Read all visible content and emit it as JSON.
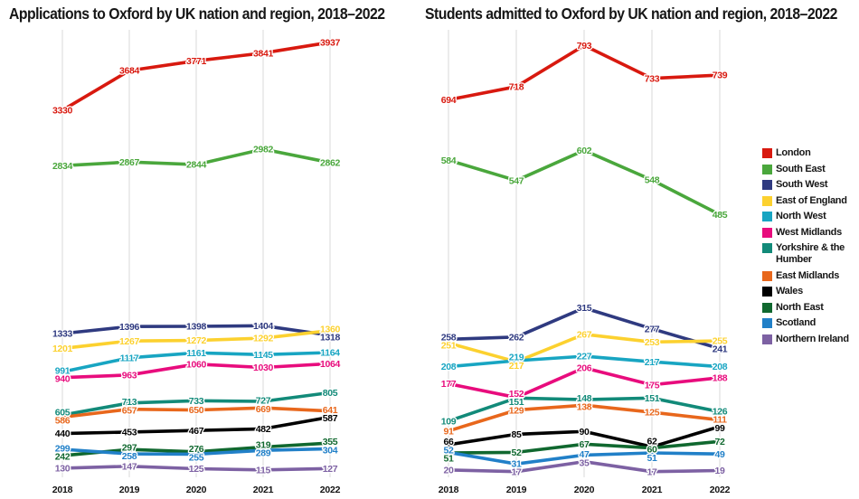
{
  "chart_data": [
    {
      "type": "line",
      "title": "Applications to Oxford by UK nation and region, 2018–2022",
      "x": [
        "2018",
        "2019",
        "2020",
        "2021",
        "2022"
      ],
      "xlabel": "",
      "ylabel": "",
      "ylim": [
        0,
        4000
      ],
      "grid": "vertical-gridlines-only",
      "legend_position": "right-shared",
      "point_labels": "every-point",
      "series": [
        {
          "name": "London",
          "color": "#d8190f",
          "values": [
            3330,
            3684,
            3771,
            3841,
            3937
          ]
        },
        {
          "name": "South East",
          "color": "#4aa73c",
          "values": [
            2834,
            2867,
            2844,
            2982,
            2862
          ]
        },
        {
          "name": "South West",
          "color": "#2f3a80",
          "values": [
            1333,
            1396,
            1398,
            1404,
            1318
          ]
        },
        {
          "name": "East of England",
          "color": "#fcd12f",
          "values": [
            1201,
            1267,
            1272,
            1292,
            1360
          ]
        },
        {
          "name": "North West",
          "color": "#18a5c2",
          "values": [
            991,
            1117,
            1161,
            1145,
            1164
          ]
        },
        {
          "name": "West Midlands",
          "color": "#e80c7d",
          "values": [
            940,
            963,
            1060,
            1030,
            1064
          ]
        },
        {
          "name": "Yorkshire & the Humber",
          "color": "#128a79",
          "values": [
            605,
            713,
            733,
            727,
            805
          ]
        },
        {
          "name": "East Midlands",
          "color": "#e8671c",
          "values": [
            586,
            657,
            650,
            669,
            641
          ]
        },
        {
          "name": "Wales",
          "color": "#000000",
          "values": [
            440,
            453,
            467,
            482,
            587
          ]
        },
        {
          "name": "North East",
          "color": "#10682f",
          "values": [
            242,
            297,
            276,
            319,
            355
          ]
        },
        {
          "name": "Scotland",
          "color": "#2180c8",
          "values": [
            299,
            258,
            255,
            289,
            304
          ]
        },
        {
          "name": "Northern Ireland",
          "color": "#7d61a3",
          "values": [
            130,
            147,
            125,
            115,
            127
          ]
        }
      ]
    },
    {
      "type": "line",
      "title": "Students admitted to Oxford by UK nation and region, 2018–2022",
      "x": [
        "2018",
        "2019",
        "2020",
        "2021",
        "2022"
      ],
      "xlabel": "",
      "ylabel": "",
      "ylim": [
        0,
        800
      ],
      "grid": "vertical-gridlines-only",
      "legend_position": "right-shared",
      "point_labels": "every-point",
      "series": [
        {
          "name": "London",
          "color": "#d8190f",
          "values": [
            694,
            718,
            793,
            733,
            739
          ]
        },
        {
          "name": "South East",
          "color": "#4aa73c",
          "values": [
            584,
            547,
            602,
            548,
            485
          ]
        },
        {
          "name": "South West",
          "color": "#2f3a80",
          "values": [
            258,
            262,
            315,
            277,
            241
          ]
        },
        {
          "name": "East of England",
          "color": "#fcd12f",
          "values": [
            251,
            217,
            267,
            253,
            255
          ]
        },
        {
          "name": "North West",
          "color": "#18a5c2",
          "values": [
            208,
            219,
            227,
            217,
            208
          ]
        },
        {
          "name": "West Midlands",
          "color": "#e80c7d",
          "values": [
            177,
            152,
            206,
            175,
            188
          ]
        },
        {
          "name": "Yorkshire & the Humber",
          "color": "#128a79",
          "values": [
            109,
            151,
            148,
            151,
            126
          ]
        },
        {
          "name": "East Midlands",
          "color": "#e8671c",
          "values": [
            91,
            129,
            138,
            125,
            111
          ]
        },
        {
          "name": "Wales",
          "color": "#000000",
          "values": [
            66,
            85,
            90,
            62,
            99
          ]
        },
        {
          "name": "North East",
          "color": "#10682f",
          "values": [
            51,
            52,
            67,
            60,
            72
          ]
        },
        {
          "name": "Scotland",
          "color": "#2180c8",
          "values": [
            52,
            31,
            47,
            51,
            49
          ]
        },
        {
          "name": "Northern Ireland",
          "color": "#7d61a3",
          "values": [
            20,
            17,
            35,
            17,
            19
          ]
        }
      ]
    }
  ],
  "legend": {
    "items_source": "series names of both charts (identical)",
    "wrap_item": "Yorkshire & the Humber"
  },
  "colors": {
    "background": "#ffffff",
    "gridline": "#dadada",
    "title_text": "#161616",
    "axis_tick_text": "#111111"
  }
}
